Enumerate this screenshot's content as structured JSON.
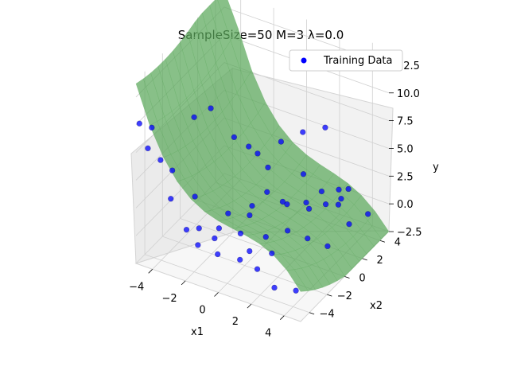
{
  "chart_data": {
    "type": "scatter",
    "title": "SampleSize=50 M=3 λ=0.0",
    "xlabel": "x1",
    "ylabel": "x2",
    "zlabel": "y",
    "x_ticks": [
      "−4",
      "−2",
      "0",
      "2",
      "4"
    ],
    "y_ticks": [
      "−4",
      "−2",
      "0",
      "2",
      "4"
    ],
    "z_ticks": [
      "−2.5",
      "0.0",
      "2.5",
      "5.0",
      "7.5",
      "10.0",
      "12.5"
    ],
    "xlim": [
      -5,
      5
    ],
    "ylim": [
      -5,
      5
    ],
    "zlim": [
      -2.5,
      14
    ],
    "grid": true,
    "legend_position": "top-right",
    "series": [
      {
        "name": "Training Data",
        "type": "scatter",
        "color": "#0000ff",
        "points": [
          [
            -4.9,
            -4.8,
            10.0
          ],
          [
            -4.6,
            -4.4,
            7.6
          ],
          [
            -4.9,
            -3.4,
            8.5
          ],
          [
            -4.1,
            -3.9,
            6.4
          ],
          [
            -3.1,
            -4.6,
            4.0
          ],
          [
            -3.6,
            -3.5,
            5.4
          ],
          [
            -2.2,
            -4.5,
            1.6
          ],
          [
            -1.6,
            -4.2,
            1.8
          ],
          [
            -1.4,
            -4.7,
            0.8
          ],
          [
            -0.6,
            -4.3,
            1.5
          ],
          [
            -0.2,
            -4.7,
            0.6
          ],
          [
            1.1,
            -4.6,
            0.7
          ],
          [
            2.1,
            -4.5,
            0.3
          ],
          [
            3.3,
            -4.8,
            -0.5
          ],
          [
            4.5,
            -4.6,
            -0.3
          ],
          [
            -0.6,
            -3.8,
            2.0
          ],
          [
            0.6,
            -3.6,
            2.0
          ],
          [
            1.2,
            -3.7,
            0.8
          ],
          [
            2.5,
            -3.6,
            1.2
          ],
          [
            -2.6,
            -2.8,
            3.0
          ],
          [
            -0.8,
            -2.4,
            2.1
          ],
          [
            0.4,
            -2.2,
            2.4
          ],
          [
            1.6,
            -2.6,
            1.4
          ],
          [
            2.6,
            -2.0,
            2.0
          ],
          [
            3.6,
            -1.6,
            1.5
          ],
          [
            4.6,
            -1.2,
            1.0
          ],
          [
            -3.4,
            -1.4,
            8.6
          ],
          [
            -2.6,
            -1.0,
            9.5
          ],
          [
            -1.4,
            -0.6,
            7.2
          ],
          [
            -0.4,
            0.2,
            5.6
          ],
          [
            0.6,
            -0.6,
            3.3
          ],
          [
            1.6,
            -0.2,
            2.4
          ],
          [
            2.4,
            0.8,
            1.6
          ],
          [
            3.2,
            1.2,
            2.1
          ],
          [
            4.3,
            1.8,
            0.4
          ],
          [
            4.8,
            3.0,
            0.6
          ],
          [
            1.2,
            2.4,
            2.8
          ],
          [
            2.2,
            2.6,
            1.6
          ],
          [
            3.4,
            3.4,
            1.8
          ],
          [
            -0.8,
            3.6,
            3.7
          ],
          [
            0.2,
            4.2,
            4.6
          ],
          [
            1.4,
            4.5,
            5.4
          ],
          [
            -1.8,
            1.8,
            4.2
          ],
          [
            -0.2,
            1.0,
            3.8
          ],
          [
            3.0,
            3.0,
            0.5
          ],
          [
            3.6,
            2.2,
            2.0
          ],
          [
            1.8,
            1.6,
            1.2
          ],
          [
            0.8,
            0.8,
            1.4
          ],
          [
            -0.2,
            -0.8,
            1.8
          ],
          [
            2.6,
            3.8,
            1.0
          ]
        ]
      },
      {
        "name": "",
        "type": "surface",
        "color": "#5aa75a"
      }
    ]
  }
}
